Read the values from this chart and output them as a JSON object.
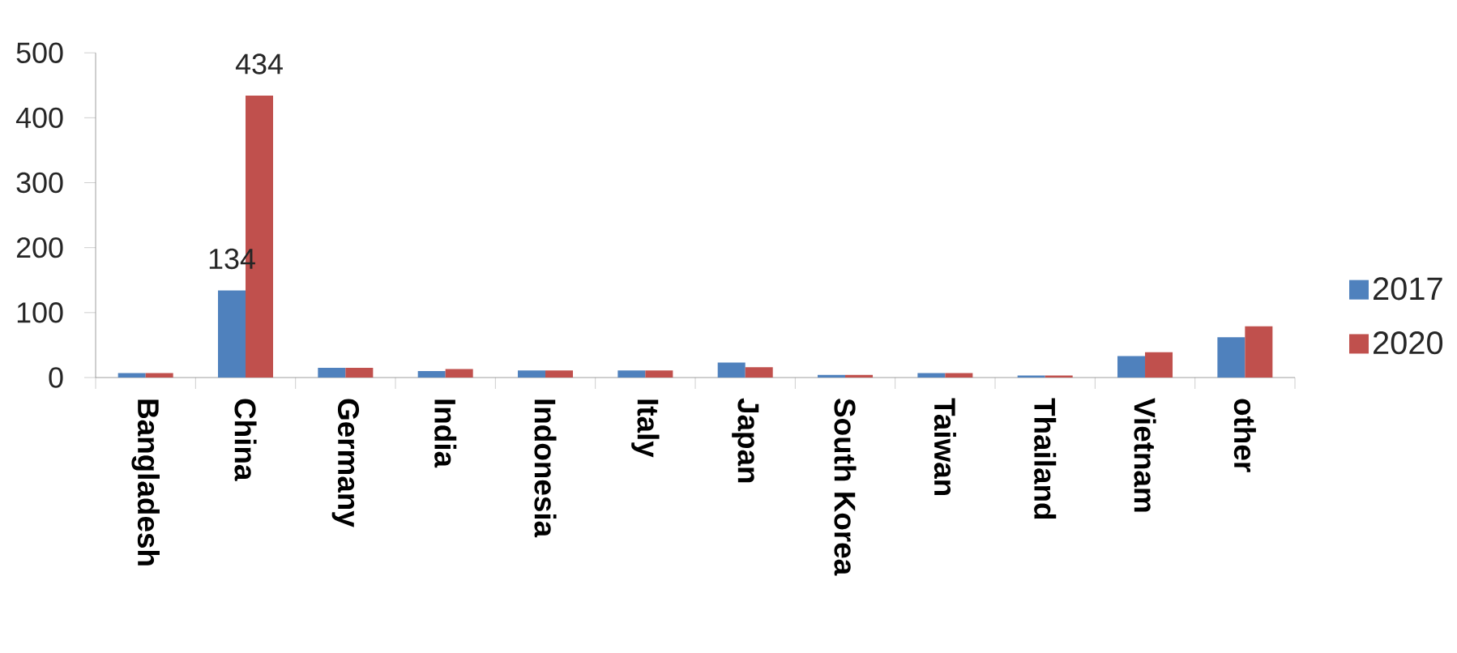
{
  "chart_data": {
    "type": "bar",
    "categories": [
      "Bangladesh",
      "China",
      "Germany",
      "India",
      "Indonesia",
      "Italy",
      "Japan",
      "South Korea",
      "Taiwan",
      "Thailand",
      "Vietnam",
      "other"
    ],
    "series": [
      {
        "name": "2017",
        "color": "#4f81bd",
        "values": [
          7,
          134,
          15,
          10,
          11,
          11,
          23,
          4,
          7,
          3,
          33,
          62
        ],
        "value_labels": [
          null,
          "134",
          null,
          null,
          null,
          null,
          null,
          null,
          null,
          null,
          null,
          null
        ]
      },
      {
        "name": "2020",
        "color": "#c0504d",
        "values": [
          7,
          434,
          15,
          13,
          11,
          11,
          16,
          4,
          7,
          3,
          39,
          79
        ],
        "value_labels": [
          null,
          "434",
          null,
          null,
          null,
          null,
          null,
          null,
          null,
          null,
          null,
          null
        ]
      }
    ],
    "ylim": [
      0,
      500
    ],
    "yticks": [
      0,
      100,
      200,
      300,
      400,
      500
    ],
    "legend": "right"
  }
}
